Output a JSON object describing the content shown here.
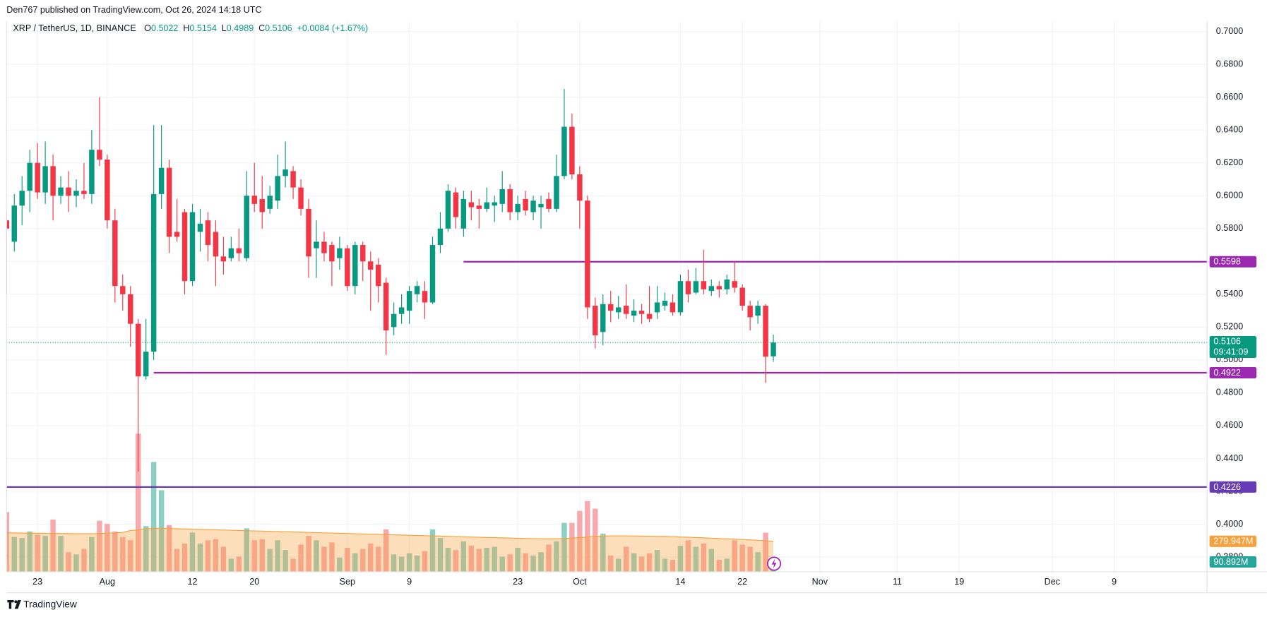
{
  "header": "Den767 published on TradingView.com, Oct 26, 2024 14:18 UTC",
  "footer": "TradingView",
  "chart_data": {
    "type": "candlestick",
    "title": "XRP / TetherUS, 1D, BINANCE",
    "legend": {
      "labels": [
        "O",
        "H",
        "L",
        "C"
      ],
      "change": "+0.0084 (+1.67%)"
    },
    "countdown": "09:41:09",
    "up_color": "#089981",
    "down_color": "#f23645",
    "x": [
      "2024-07-19",
      "2024-07-20",
      "2024-07-21",
      "2024-07-22",
      "2024-07-23",
      "2024-07-24",
      "2024-07-25",
      "2024-07-26",
      "2024-07-27",
      "2024-07-28",
      "2024-07-29",
      "2024-07-30",
      "2024-07-31",
      "2024-08-01",
      "2024-08-02",
      "2024-08-03",
      "2024-08-04",
      "2024-08-05",
      "2024-08-06",
      "2024-08-07",
      "2024-08-08",
      "2024-08-09",
      "2024-08-10",
      "2024-08-11",
      "2024-08-12",
      "2024-08-13",
      "2024-08-14",
      "2024-08-15",
      "2024-08-16",
      "2024-08-17",
      "2024-08-18",
      "2024-08-19",
      "2024-08-20",
      "2024-08-21",
      "2024-08-22",
      "2024-08-23",
      "2024-08-24",
      "2024-08-25",
      "2024-08-26",
      "2024-08-27",
      "2024-08-28",
      "2024-08-29",
      "2024-08-30",
      "2024-08-31",
      "2024-09-01",
      "2024-09-02",
      "2024-09-03",
      "2024-09-04",
      "2024-09-05",
      "2024-09-06",
      "2024-09-07",
      "2024-09-08",
      "2024-09-09",
      "2024-09-10",
      "2024-09-11",
      "2024-09-12",
      "2024-09-13",
      "2024-09-14",
      "2024-09-15",
      "2024-09-16",
      "2024-09-17",
      "2024-09-18",
      "2024-09-19",
      "2024-09-20",
      "2024-09-21",
      "2024-09-22",
      "2024-09-23",
      "2024-09-24",
      "2024-09-25",
      "2024-09-26",
      "2024-09-27",
      "2024-09-28",
      "2024-09-29",
      "2024-09-30",
      "2024-10-01",
      "2024-10-02",
      "2024-10-03",
      "2024-10-04",
      "2024-10-05",
      "2024-10-06",
      "2024-10-07",
      "2024-10-08",
      "2024-10-09",
      "2024-10-10",
      "2024-10-11",
      "2024-10-12",
      "2024-10-13",
      "2024-10-14",
      "2024-10-15",
      "2024-10-16",
      "2024-10-17",
      "2024-10-18",
      "2024-10-19",
      "2024-10-20",
      "2024-10-21",
      "2024-10-22",
      "2024-10-23",
      "2024-10-24",
      "2024-10-25",
      "2024-10-26"
    ],
    "open": [
      0.585,
      0.572,
      0.594,
      0.603,
      0.62,
      0.602,
      0.618,
      0.6,
      0.605,
      0.6,
      0.603,
      0.601,
      0.628,
      0.622,
      0.585,
      0.545,
      0.54,
      0.522,
      0.49,
      0.505,
      0.601,
      0.617,
      0.578,
      0.59,
      0.548,
      0.578,
      0.585,
      0.578,
      0.563,
      0.562,
      0.568,
      0.562,
      0.6,
      0.598,
      0.592,
      0.597,
      0.612,
      0.615,
      0.605,
      0.592,
      0.568,
      0.572,
      0.57,
      0.562,
      0.568,
      0.545,
      0.57,
      0.56,
      0.558,
      0.547,
      0.52,
      0.528,
      0.53,
      0.54,
      0.542,
      0.535,
      0.57,
      0.58,
      0.602,
      0.58,
      0.596,
      0.594,
      0.592,
      0.594,
      0.595,
      0.604,
      0.59,
      0.598,
      0.59,
      0.593,
      0.598,
      0.592,
      0.612,
      0.642,
      0.613,
      0.597,
      0.533,
      0.517,
      0.534,
      0.529,
      0.533,
      0.527,
      0.53,
      0.528,
      0.529,
      0.533,
      0.535,
      0.529,
      0.548,
      0.541,
      0.548,
      0.542,
      0.545,
      0.543,
      0.548,
      0.544,
      0.533,
      0.527,
      0.533,
      0.5022
    ],
    "high": [
      0.59,
      0.601,
      0.612,
      0.628,
      0.632,
      0.633,
      0.625,
      0.612,
      0.615,
      0.61,
      0.62,
      0.64,
      0.66,
      0.625,
      0.592,
      0.552,
      0.545,
      0.525,
      0.525,
      0.643,
      0.643,
      0.622,
      0.598,
      0.592,
      0.595,
      0.592,
      0.59,
      0.585,
      0.575,
      0.575,
      0.58,
      0.615,
      0.62,
      0.612,
      0.606,
      0.625,
      0.633,
      0.618,
      0.61,
      0.598,
      0.585,
      0.578,
      0.572,
      0.575,
      0.57,
      0.572,
      0.572,
      0.566,
      0.562,
      0.55,
      0.535,
      0.54,
      0.545,
      0.548,
      0.548,
      0.575,
      0.59,
      0.607,
      0.605,
      0.603,
      0.603,
      0.598,
      0.605,
      0.6,
      0.615,
      0.607,
      0.6,
      0.603,
      0.6,
      0.6,
      0.602,
      0.625,
      0.665,
      0.65,
      0.618,
      0.6,
      0.538,
      0.54,
      0.542,
      0.539,
      0.546,
      0.537,
      0.534,
      0.545,
      0.545,
      0.541,
      0.54,
      0.552,
      0.555,
      0.556,
      0.567,
      0.549,
      0.548,
      0.552,
      0.56,
      0.546,
      0.536,
      0.536,
      0.534,
      0.5154
    ],
    "low": [
      0.54,
      0.566,
      0.582,
      0.59,
      0.598,
      0.595,
      0.585,
      0.595,
      0.59,
      0.593,
      0.598,
      0.595,
      0.618,
      0.58,
      0.535,
      0.53,
      0.508,
      0.432,
      0.488,
      0.5,
      0.592,
      0.565,
      0.572,
      0.54,
      0.545,
      0.566,
      0.56,
      0.545,
      0.552,
      0.56,
      0.56,
      0.56,
      0.59,
      0.58,
      0.589,
      0.592,
      0.605,
      0.598,
      0.588,
      0.55,
      0.55,
      0.56,
      0.545,
      0.555,
      0.542,
      0.54,
      0.548,
      0.53,
      0.535,
      0.503,
      0.515,
      0.522,
      0.522,
      0.535,
      0.525,
      0.534,
      0.565,
      0.578,
      0.58,
      0.575,
      0.585,
      0.58,
      0.59,
      0.584,
      0.59,
      0.585,
      0.585,
      0.588,
      0.585,
      0.58,
      0.59,
      0.59,
      0.61,
      0.61,
      0.58,
      0.525,
      0.507,
      0.509,
      0.523,
      0.525,
      0.525,
      0.523,
      0.522,
      0.523,
      0.525,
      0.53,
      0.527,
      0.527,
      0.535,
      0.54,
      0.54,
      0.539,
      0.538,
      0.54,
      0.541,
      0.53,
      0.518,
      0.522,
      0.486,
      0.4989
    ],
    "close": [
      0.58,
      0.594,
      0.603,
      0.62,
      0.602,
      0.618,
      0.6,
      0.605,
      0.6,
      0.603,
      0.601,
      0.628,
      0.622,
      0.585,
      0.545,
      0.54,
      0.522,
      0.49,
      0.505,
      0.601,
      0.617,
      0.575,
      0.575,
      0.548,
      0.59,
      0.583,
      0.57,
      0.563,
      0.56,
      0.568,
      0.565,
      0.6,
      0.595,
      0.59,
      0.6,
      0.612,
      0.616,
      0.605,
      0.592,
      0.563,
      0.572,
      0.565,
      0.56,
      0.568,
      0.545,
      0.57,
      0.56,
      0.555,
      0.545,
      0.518,
      0.528,
      0.532,
      0.542,
      0.545,
      0.535,
      0.57,
      0.58,
      0.603,
      0.587,
      0.598,
      0.593,
      0.592,
      0.596,
      0.596,
      0.604,
      0.59,
      0.595,
      0.591,
      0.597,
      0.595,
      0.592,
      0.612,
      0.642,
      0.613,
      0.597,
      0.532,
      0.515,
      0.534,
      0.53,
      0.532,
      0.528,
      0.53,
      0.528,
      0.525,
      0.535,
      0.536,
      0.529,
      0.548,
      0.54,
      0.548,
      0.543,
      0.545,
      0.543,
      0.549,
      0.544,
      0.533,
      0.526,
      0.533,
      0.502,
      0.5106
    ],
    "volume": {
      "label": "90.892M",
      "up_color": "#8ccfc3",
      "down_color": "#f7a9ae",
      "badge_color": "#26a69a",
      "values": [
        550,
        320,
        310,
        370,
        340,
        330,
        480,
        330,
        180,
        160,
        210,
        320,
        470,
        440,
        370,
        320,
        290,
        1270,
        420,
        1010,
        750,
        430,
        210,
        260,
        360,
        260,
        290,
        300,
        230,
        120,
        140,
        400,
        290,
        300,
        210,
        290,
        200,
        120,
        250,
        330,
        290,
        230,
        270,
        130,
        220,
        170,
        210,
        260,
        230,
        390,
        160,
        140,
        170,
        150,
        190,
        390,
        310,
        220,
        200,
        280,
        240,
        210,
        220,
        230,
        140,
        160,
        220,
        170,
        150,
        180,
        250,
        280,
        450,
        450,
        560,
        650,
        580,
        350,
        150,
        120,
        230,
        170,
        140,
        170,
        200,
        120,
        110,
        240,
        290,
        230,
        260,
        210,
        110,
        120,
        290,
        250,
        230,
        180,
        360,
        90.892
      ]
    },
    "volume_ma": {
      "label": "279.947M",
      "color": "#f7a13d",
      "values": [
        360,
        358,
        356,
        355,
        354,
        353,
        352,
        352,
        351,
        350,
        350,
        350,
        352,
        355,
        358,
        362,
        380,
        385,
        395,
        400,
        400,
        398,
        396,
        394,
        392,
        390,
        388,
        386,
        384,
        382,
        380,
        378,
        376,
        374,
        372,
        370,
        368,
        366,
        364,
        362,
        360,
        358,
        356,
        354,
        352,
        350,
        348,
        346,
        344,
        342,
        340,
        338,
        336,
        334,
        332,
        330,
        328,
        326,
        324,
        322,
        320,
        318,
        316,
        314,
        312,
        310,
        308,
        306,
        305,
        304,
        303,
        304,
        306,
        310,
        315,
        320,
        325,
        328,
        330,
        330,
        330,
        329,
        328,
        327,
        326,
        325,
        323,
        320,
        318,
        315,
        312,
        309,
        306,
        303,
        300,
        297,
        294,
        290,
        285,
        279.947
      ]
    },
    "levels": [
      {
        "value": 0.5598,
        "start": "2024-09-16",
        "color": "#9c27b0"
      },
      {
        "value": 0.4922,
        "start": "2024-08-07",
        "color": "#9c27b0"
      },
      {
        "value": 0.4226,
        "color": "#673ab7"
      }
    ],
    "xlim": [
      "2024-07-19",
      "2024-12-21"
    ],
    "xticks": [
      {
        "value": "2024-07-23",
        "label": "23"
      },
      {
        "value": "2024-08-01",
        "label": "Aug"
      },
      {
        "value": "2024-08-12",
        "label": "12"
      },
      {
        "value": "2024-08-20",
        "label": "20"
      },
      {
        "value": "2024-09-01",
        "label": "Sep"
      },
      {
        "value": "2024-09-09",
        "label": "9"
      },
      {
        "value": "2024-09-23",
        "label": "23"
      },
      {
        "value": "2024-10-01",
        "label": "Oct"
      },
      {
        "value": "2024-10-14",
        "label": "14"
      },
      {
        "value": "2024-10-22",
        "label": "22"
      },
      {
        "value": "2024-11-01",
        "label": "Nov"
      },
      {
        "value": "2024-11-11",
        "label": "11"
      },
      {
        "value": "2024-11-19",
        "label": "19"
      },
      {
        "value": "2024-12-01",
        "label": "Dec"
      },
      {
        "value": "2024-12-09",
        "label": "9"
      }
    ],
    "ylim": [
      0.371,
      0.7064
    ],
    "yticks": [
      {
        "value": 0.7,
        "label": "0.7000"
      },
      {
        "value": 0.68,
        "label": "0.6800"
      },
      {
        "value": 0.66,
        "label": "0.6600"
      },
      {
        "value": 0.64,
        "label": "0.6400"
      },
      {
        "value": 0.62,
        "label": "0.6200"
      },
      {
        "value": 0.6,
        "label": "0.6000"
      },
      {
        "value": 0.58,
        "label": "0.5800"
      },
      {
        "value": 0.56,
        "label": "0.5600"
      },
      {
        "value": 0.54,
        "label": "0.5400"
      },
      {
        "value": 0.52,
        "label": "0.5200"
      },
      {
        "value": 0.5,
        "label": "0.5000"
      },
      {
        "value": 0.48,
        "label": "0.4800"
      },
      {
        "value": 0.46,
        "label": "0.4600"
      },
      {
        "value": 0.44,
        "label": "0.4400"
      },
      {
        "value": 0.42,
        "label": "0.4200"
      },
      {
        "value": 0.4,
        "label": "0.4000"
      },
      {
        "value": 0.38,
        "label": "0.3800"
      }
    ],
    "grid": true
  }
}
